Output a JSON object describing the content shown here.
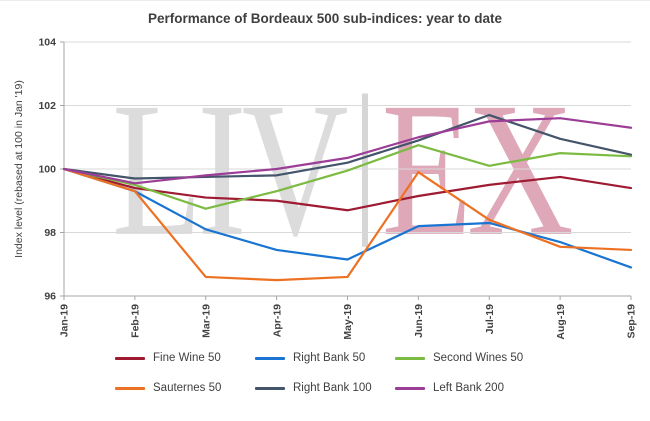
{
  "watermark": {
    "left": "LIV",
    "right": "EX"
  },
  "chart_data": {
    "type": "line",
    "title": "Performance of Bordeaux 500 sub-indices: year to date",
    "ylabel": "Index level (rebased at 100 in Jan '19)",
    "xlabel": "",
    "categories": [
      "Jan-19",
      "Feb-19",
      "Mar-19",
      "Apr-19",
      "May-19",
      "Jun-19",
      "Jul-19",
      "Aug-19",
      "Sep-19"
    ],
    "ylim": [
      96,
      104
    ],
    "yticks": [
      96,
      98,
      100,
      102,
      104
    ],
    "grid": "horizontal",
    "legend_position": "bottom",
    "series": [
      {
        "name": "Fine Wine 50",
        "color": "#9e1b32",
        "values": [
          100,
          99.4,
          99.1,
          99.0,
          98.7,
          99.15,
          99.5,
          99.75,
          99.4
        ]
      },
      {
        "name": "Right Bank 50",
        "color": "#1a75d2",
        "values": [
          100,
          99.3,
          98.1,
          97.45,
          97.15,
          98.2,
          98.3,
          97.7,
          96.9
        ]
      },
      {
        "name": "Second Wines 50",
        "color": "#7cbb42",
        "values": [
          100,
          99.5,
          98.75,
          99.3,
          99.95,
          100.75,
          100.1,
          100.5,
          100.4
        ]
      },
      {
        "name": "Sauternes 50",
        "color": "#ed7122",
        "values": [
          100,
          99.3,
          96.6,
          96.5,
          96.6,
          99.9,
          98.4,
          97.55,
          97.45
        ]
      },
      {
        "name": "Right Bank 100",
        "color": "#44546a",
        "values": [
          100,
          99.7,
          99.75,
          99.8,
          100.2,
          100.9,
          101.7,
          100.95,
          100.45
        ]
      },
      {
        "name": "Left Bank 200",
        "color": "#9c3d97",
        "values": [
          100,
          99.55,
          99.8,
          100.0,
          100.35,
          101.0,
          101.5,
          101.6,
          101.3
        ]
      }
    ]
  }
}
